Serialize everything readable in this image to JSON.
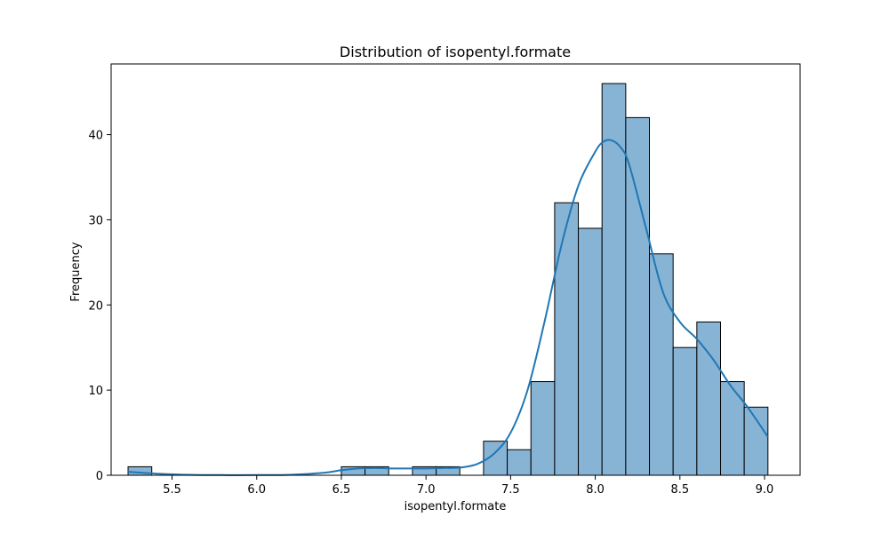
{
  "chart_data": {
    "type": "bar",
    "subtype": "histogram-with-kde",
    "title": "Distribution of isopentyl.formate",
    "xlabel": "isopentyl.formate",
    "ylabel": "Frequency",
    "xlim": [
      5.14,
      9.21
    ],
    "ylim": [
      0,
      48.3
    ],
    "xticks": [
      5.5,
      6.0,
      6.5,
      7.0,
      7.5,
      8.0,
      8.5,
      9.0
    ],
    "xtick_labels": [
      "5.5",
      "6.0",
      "6.5",
      "7.0",
      "7.5",
      "8.0",
      "8.5",
      "9.0"
    ],
    "yticks": [
      0,
      10,
      20,
      30,
      40
    ],
    "ytick_labels": [
      "0",
      "10",
      "20",
      "30",
      "40"
    ],
    "bins": {
      "edges": [
        5.24,
        5.38,
        5.52,
        5.66,
        5.8,
        5.94,
        6.08,
        6.22,
        6.36,
        6.5,
        6.64,
        6.78,
        6.92,
        7.06,
        7.2,
        7.34,
        7.48,
        7.62,
        7.76,
        7.9,
        8.04,
        8.18,
        8.32,
        8.46,
        8.6,
        8.74,
        8.88,
        9.02
      ],
      "counts": [
        1,
        0,
        0,
        0,
        0,
        0,
        0,
        0,
        0,
        1,
        1,
        0,
        1,
        1,
        0,
        4,
        3,
        11,
        32,
        29,
        46,
        42,
        26,
        15,
        18,
        11,
        8
      ]
    },
    "kde": {
      "x": [
        5.24,
        5.4,
        5.6,
        5.8,
        6.0,
        6.2,
        6.4,
        6.5,
        6.6,
        6.7,
        6.8,
        6.9,
        7.0,
        7.1,
        7.2,
        7.3,
        7.4,
        7.5,
        7.6,
        7.7,
        7.8,
        7.9,
        8.0,
        8.05,
        8.1,
        8.15,
        8.2,
        8.3,
        8.4,
        8.5,
        8.6,
        8.7,
        8.8,
        8.9,
        9.02
      ],
      "y": [
        0.4,
        0.2,
        0.05,
        0.02,
        0.02,
        0.05,
        0.3,
        0.6,
        0.8,
        0.85,
        0.8,
        0.8,
        0.8,
        0.85,
        0.9,
        1.3,
        2.5,
        5.0,
        10.0,
        18.0,
        27.0,
        34.0,
        38.0,
        39.2,
        39.3,
        38.5,
        36.5,
        29.0,
        21.5,
        18.0,
        16.0,
        13.5,
        10.5,
        8.0,
        4.5
      ]
    },
    "colors": {
      "bar_fill": "#87b3d5",
      "bar_edge": "#000000",
      "kde_line": "#1f77b4"
    },
    "grid": false,
    "legend": "none"
  }
}
